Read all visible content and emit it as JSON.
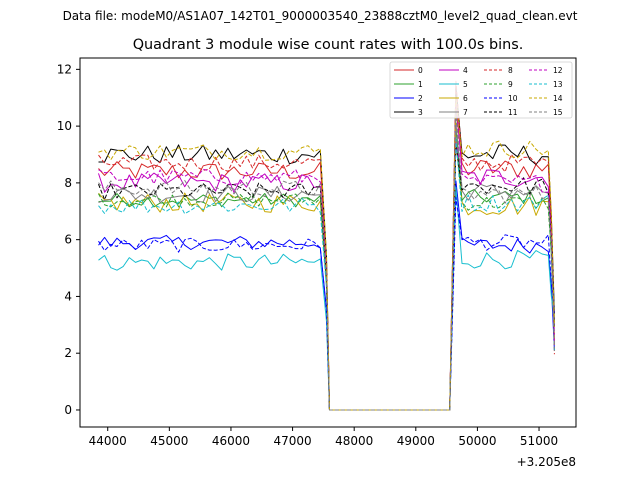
{
  "chart_data": {
    "type": "line",
    "suptitle": "Data file: modeM0/AS1A07_142T01_9000003540_23888cztM0_level2_quad_clean.evt",
    "title": "Quadrant 3 module wise count rates with 100.0s bins.",
    "xlabel": "",
    "ylabel": "",
    "x_offset_label": "+3.205e8",
    "xlim": [
      43550,
      51600
    ],
    "ylim": [
      -0.6,
      12.4
    ],
    "x_ticks": [
      44000,
      45000,
      46000,
      47000,
      48000,
      49000,
      50000,
      51000
    ],
    "x_tick_labels": [
      "44000",
      "45000",
      "46000",
      "47000",
      "48000",
      "49000",
      "50000",
      "51000"
    ],
    "y_ticks": [
      0,
      2,
      4,
      6,
      8,
      10,
      12
    ],
    "y_tick_labels": [
      "0",
      "2",
      "4",
      "6",
      "8",
      "10",
      "12"
    ],
    "legend_position": "upper right",
    "segments": [
      {
        "start": 43850,
        "end": 47450
      },
      {
        "start": 49650,
        "end": 51150
      }
    ],
    "series": [
      {
        "name": "0",
        "color": "#d62728",
        "dash": "solid",
        "base": 8.4,
        "amp": 0.35,
        "seg2": 8.5
      },
      {
        "name": "1",
        "color": "#2ca02c",
        "dash": "solid",
        "base": 7.4,
        "amp": 0.25,
        "seg2": 7.5
      },
      {
        "name": "2",
        "color": "#0000ff",
        "dash": "solid",
        "base": 5.9,
        "amp": 0.25,
        "seg2": 5.8
      },
      {
        "name": "3",
        "color": "#000000",
        "dash": "solid",
        "base": 9.0,
        "amp": 0.35,
        "seg2": 9.0
      },
      {
        "name": "4",
        "color": "#c000c0",
        "dash": "solid",
        "base": 8.0,
        "amp": 0.35,
        "seg2": 8.2
      },
      {
        "name": "5",
        "color": "#17becf",
        "dash": "solid",
        "base": 5.2,
        "amp": 0.3,
        "seg2": 5.3
      },
      {
        "name": "6",
        "color": "#c8a800",
        "dash": "solid",
        "base": 7.3,
        "amp": 0.35,
        "seg2": 7.2
      },
      {
        "name": "7",
        "color": "#808080",
        "dash": "solid",
        "base": 7.6,
        "amp": 0.3,
        "seg2": 7.7
      },
      {
        "name": "8",
        "color": "#d62728",
        "dash": "dashed",
        "base": 8.7,
        "amp": 0.3,
        "seg2": 8.7
      },
      {
        "name": "9",
        "color": "#2ca02c",
        "dash": "dashed",
        "base": 7.4,
        "amp": 0.25,
        "seg2": 7.3
      },
      {
        "name": "10",
        "color": "#0000ff",
        "dash": "dashed",
        "base": 5.8,
        "amp": 0.25,
        "seg2": 5.9
      },
      {
        "name": "11",
        "color": "#000000",
        "dash": "dashed",
        "base": 7.7,
        "amp": 0.3,
        "seg2": 7.9
      },
      {
        "name": "12",
        "color": "#c000c0",
        "dash": "dashed",
        "base": 8.2,
        "amp": 0.3,
        "seg2": 8.0
      },
      {
        "name": "13",
        "color": "#17becf",
        "dash": "dashed",
        "base": 7.2,
        "amp": 0.3,
        "seg2": 7.3
      },
      {
        "name": "14",
        "color": "#c8a800",
        "dash": "dashed",
        "base": 9.1,
        "amp": 0.3,
        "seg2": 9.2
      },
      {
        "name": "15",
        "color": "#808080",
        "dash": "dashed",
        "base": 7.8,
        "amp": 0.3,
        "seg2": 7.6
      }
    ]
  }
}
